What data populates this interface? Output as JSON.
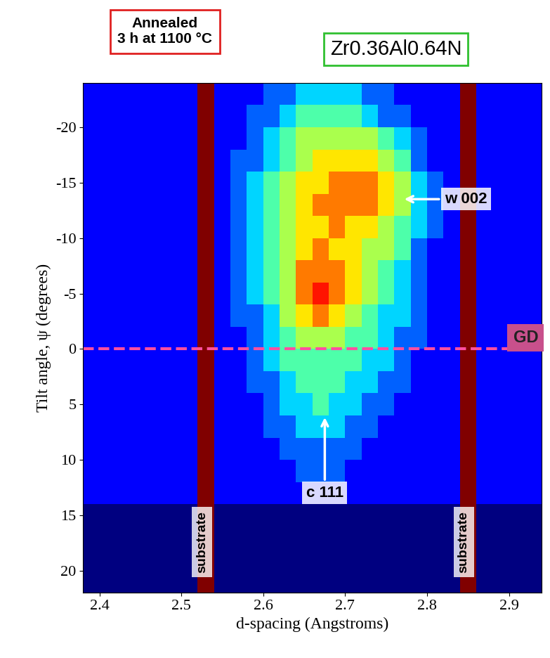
{
  "chart_data": {
    "type": "heatmap",
    "annotations_top": {
      "condition": "Annealed\n3 h at 1100 °C",
      "material": "Zr0.36Al0.64N"
    },
    "x_label": "d-spacing (Angstroms)",
    "y_label": "Tilt angle, ψ (degrees)",
    "xlim": [
      2.38,
      2.94
    ],
    "ylim": [
      22,
      -24
    ],
    "xticks": [
      2.4,
      2.5,
      2.6,
      2.7,
      2.8,
      2.9
    ],
    "yticks": [
      -20,
      -15,
      -10,
      -5,
      0,
      5,
      10,
      15,
      20
    ],
    "color": "jet",
    "peak_labels": {
      "wurtzite": "w 002",
      "cubic": "c 111",
      "substrate": "substrate"
    },
    "hline": {
      "y": 0,
      "label": "GD",
      "color": "#ff4fa0"
    },
    "x_edges": [
      2.38,
      2.4,
      2.42,
      2.44,
      2.46,
      2.48,
      2.5,
      2.52,
      2.54,
      2.56,
      2.58,
      2.6,
      2.62,
      2.64,
      2.66,
      2.68,
      2.7,
      2.72,
      2.74,
      2.76,
      2.78,
      2.8,
      2.82,
      2.84,
      2.86,
      2.88,
      2.9,
      2.92,
      2.94
    ],
    "y_edges": [
      -24,
      -22,
      -20,
      -18,
      -16,
      -14,
      -12,
      -10,
      -8,
      -6,
      -4,
      -2,
      0,
      2,
      4,
      6,
      8,
      10,
      12,
      14,
      16,
      18,
      20,
      22
    ],
    "cells": [
      [
        2,
        2,
        2,
        2,
        2,
        2,
        2,
        10,
        2,
        2,
        2,
        3,
        3,
        4,
        4,
        4,
        4,
        3,
        3,
        2,
        2,
        2,
        2,
        10,
        2,
        2,
        2,
        2
      ],
      [
        2,
        2,
        2,
        2,
        2,
        2,
        2,
        10,
        2,
        2,
        3,
        3,
        4,
        5,
        5,
        5,
        5,
        4,
        3,
        3,
        2,
        2,
        2,
        10,
        2,
        2,
        2,
        2
      ],
      [
        2,
        2,
        2,
        2,
        2,
        2,
        2,
        10,
        2,
        2,
        3,
        4,
        5,
        6,
        6,
        6,
        6,
        6,
        5,
        4,
        3,
        2,
        2,
        10,
        2,
        2,
        2,
        2
      ],
      [
        2,
        2,
        2,
        2,
        2,
        2,
        2,
        10,
        2,
        3,
        3,
        4,
        5,
        6,
        7,
        7,
        7,
        7,
        6,
        5,
        3,
        2,
        2,
        10,
        2,
        2,
        2,
        2
      ],
      [
        2,
        2,
        2,
        2,
        2,
        2,
        2,
        10,
        2,
        3,
        4,
        5,
        6,
        7,
        7,
        8,
        8,
        8,
        7,
        6,
        4,
        3,
        2,
        10,
        2,
        2,
        2,
        2
      ],
      [
        2,
        2,
        2,
        2,
        2,
        2,
        2,
        10,
        2,
        3,
        4,
        5,
        6,
        7,
        8,
        8,
        8,
        8,
        7,
        6,
        4,
        3,
        2,
        10,
        2,
        2,
        2,
        2
      ],
      [
        2,
        2,
        2,
        2,
        2,
        2,
        2,
        10,
        2,
        3,
        4,
        5,
        6,
        7,
        7,
        8,
        7,
        7,
        6,
        5,
        4,
        3,
        2,
        10,
        2,
        2,
        2,
        2
      ],
      [
        2,
        2,
        2,
        2,
        2,
        2,
        2,
        10,
        2,
        3,
        4,
        5,
        6,
        7,
        8,
        7,
        7,
        6,
        6,
        5,
        3,
        2,
        2,
        10,
        2,
        2,
        2,
        2
      ],
      [
        2,
        2,
        2,
        2,
        2,
        2,
        2,
        10,
        2,
        3,
        4,
        5,
        6,
        8,
        8,
        8,
        7,
        6,
        5,
        4,
        3,
        2,
        2,
        10,
        2,
        2,
        2,
        2
      ],
      [
        2,
        2,
        2,
        2,
        2,
        2,
        2,
        10,
        2,
        3,
        4,
        5,
        6,
        8,
        9,
        8,
        7,
        6,
        5,
        4,
        3,
        2,
        2,
        10,
        2,
        2,
        2,
        2
      ],
      [
        2,
        2,
        2,
        2,
        2,
        2,
        2,
        10,
        2,
        3,
        3,
        4,
        6,
        7,
        8,
        7,
        6,
        5,
        4,
        4,
        3,
        2,
        2,
        10,
        2,
        2,
        2,
        2
      ],
      [
        2,
        2,
        2,
        2,
        2,
        2,
        2,
        10,
        2,
        2,
        3,
        4,
        5,
        6,
        6,
        6,
        5,
        5,
        4,
        3,
        3,
        2,
        2,
        10,
        2,
        2,
        2,
        2
      ],
      [
        2,
        2,
        2,
        2,
        2,
        2,
        2,
        10,
        2,
        2,
        3,
        4,
        5,
        5,
        5,
        5,
        5,
        4,
        4,
        3,
        2,
        2,
        2,
        10,
        2,
        2,
        2,
        2
      ],
      [
        2,
        2,
        2,
        2,
        2,
        2,
        2,
        10,
        2,
        2,
        3,
        3,
        4,
        5,
        5,
        5,
        4,
        4,
        3,
        3,
        2,
        2,
        2,
        10,
        2,
        2,
        2,
        2
      ],
      [
        2,
        2,
        2,
        2,
        2,
        2,
        2,
        10,
        2,
        2,
        2,
        3,
        4,
        4,
        5,
        4,
        4,
        3,
        3,
        2,
        2,
        2,
        2,
        10,
        2,
        2,
        2,
        2
      ],
      [
        2,
        2,
        2,
        2,
        2,
        2,
        2,
        10,
        2,
        2,
        2,
        3,
        3,
        4,
        4,
        4,
        3,
        3,
        2,
        2,
        2,
        2,
        2,
        10,
        2,
        2,
        2,
        2
      ],
      [
        2,
        2,
        2,
        2,
        2,
        2,
        2,
        10,
        2,
        2,
        2,
        2,
        3,
        3,
        3,
        3,
        3,
        2,
        2,
        2,
        2,
        2,
        2,
        10,
        2,
        2,
        2,
        2
      ],
      [
        2,
        2,
        2,
        2,
        2,
        2,
        2,
        10,
        2,
        2,
        2,
        2,
        2,
        3,
        3,
        3,
        2,
        2,
        2,
        2,
        2,
        2,
        2,
        10,
        2,
        2,
        2,
        2
      ],
      [
        2,
        2,
        2,
        2,
        2,
        2,
        2,
        10,
        2,
        2,
        2,
        2,
        2,
        2,
        2,
        2,
        2,
        2,
        2,
        2,
        2,
        2,
        2,
        10,
        2,
        2,
        2,
        2
      ],
      [
        1,
        1,
        1,
        1,
        1,
        1,
        1,
        10,
        1,
        1,
        1,
        1,
        1,
        1,
        1,
        1,
        1,
        1,
        1,
        1,
        1,
        1,
        1,
        10,
        1,
        1,
        1,
        1
      ],
      [
        1,
        1,
        1,
        1,
        1,
        1,
        1,
        10,
        1,
        1,
        1,
        1,
        1,
        1,
        1,
        1,
        1,
        1,
        1,
        1,
        1,
        1,
        1,
        10,
        1,
        1,
        1,
        1
      ],
      [
        1,
        1,
        1,
        1,
        1,
        1,
        1,
        10,
        1,
        1,
        1,
        1,
        1,
        1,
        1,
        1,
        1,
        1,
        1,
        1,
        1,
        1,
        1,
        10,
        1,
        1,
        1,
        1
      ],
      [
        1,
        1,
        1,
        1,
        1,
        1,
        1,
        10,
        1,
        1,
        1,
        1,
        1,
        1,
        1,
        1,
        1,
        1,
        1,
        1,
        1,
        1,
        1,
        10,
        1,
        1,
        1,
        1
      ]
    ]
  }
}
